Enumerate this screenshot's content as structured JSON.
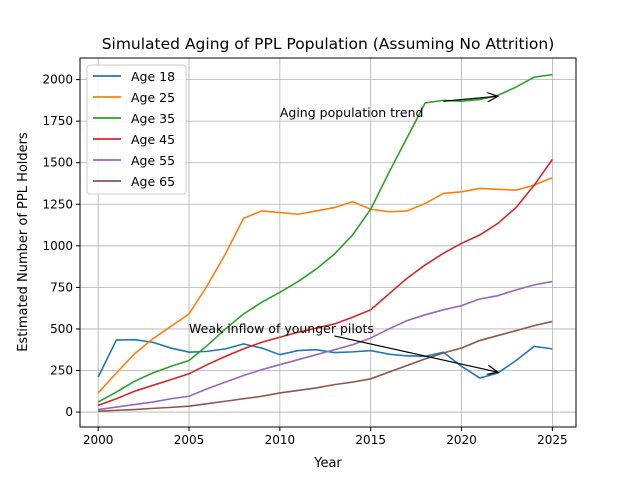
{
  "chart_data": {
    "type": "line",
    "title": "Simulated Aging of PPL Population (Assuming No Attrition)",
    "xlabel": "Year",
    "ylabel": "Estimated Number of PPL Holders",
    "xlim": [
      1999,
      2026.3
    ],
    "ylim": [
      -90,
      2130
    ],
    "xticks": [
      2000,
      2005,
      2010,
      2015,
      2020,
      2025
    ],
    "yticks": [
      0,
      250,
      500,
      750,
      1000,
      1250,
      1500,
      1750,
      2000
    ],
    "grid": true,
    "legend_position": "top-left",
    "x": [
      2000,
      2001,
      2002,
      2003,
      2004,
      2005,
      2006,
      2007,
      2008,
      2009,
      2010,
      2011,
      2012,
      2013,
      2014,
      2015,
      2016,
      2017,
      2018,
      2019,
      2020,
      2021,
      2022,
      2023,
      2024,
      2025
    ],
    "series": [
      {
        "name": "Age 18",
        "color": "#1f77b4",
        "values": [
          210,
          433,
          435,
          420,
          385,
          360,
          365,
          380,
          410,
          385,
          345,
          370,
          375,
          358,
          362,
          370,
          348,
          338,
          335,
          360,
          275,
          205,
          235,
          310,
          395,
          380
        ]
      },
      {
        "name": "Age 25",
        "color": "#ff7f0e",
        "values": [
          115,
          235,
          350,
          440,
          515,
          590,
          760,
          950,
          1165,
          1210,
          1200,
          1190,
          1210,
          1230,
          1265,
          1220,
          1205,
          1210,
          1255,
          1315,
          1325,
          1345,
          1340,
          1335,
          1365,
          1410
        ]
      },
      {
        "name": "Age 35",
        "color": "#2ca02c",
        "values": [
          60,
          120,
          185,
          235,
          275,
          310,
          400,
          500,
          590,
          660,
          720,
          785,
          860,
          950,
          1065,
          1220,
          1440,
          1650,
          1860,
          1875,
          1870,
          1880,
          1905,
          1955,
          2015,
          2030
        ]
      },
      {
        "name": "Age 45",
        "color": "#d62728",
        "values": [
          40,
          80,
          125,
          160,
          195,
          230,
          285,
          335,
          380,
          420,
          450,
          480,
          505,
          530,
          570,
          615,
          710,
          805,
          885,
          955,
          1015,
          1065,
          1135,
          1230,
          1365,
          1520
        ]
      },
      {
        "name": "Age 55",
        "color": "#9467bd",
        "values": [
          15,
          30,
          45,
          60,
          80,
          95,
          140,
          180,
          220,
          255,
          285,
          315,
          345,
          375,
          405,
          445,
          500,
          550,
          585,
          615,
          640,
          680,
          700,
          735,
          765,
          785
        ]
      },
      {
        "name": "Age 65",
        "color": "#8c564b",
        "values": [
          5,
          10,
          15,
          22,
          28,
          35,
          50,
          65,
          80,
          95,
          115,
          130,
          145,
          165,
          180,
          200,
          240,
          280,
          320,
          355,
          385,
          430,
          460,
          490,
          520,
          545
        ]
      }
    ],
    "annotations": [
      {
        "text": "Aging population trend",
        "text_xy": [
          2010,
          1800
        ],
        "arrow_from": [
          2019,
          1870
        ],
        "arrow_to": [
          2022,
          1900
        ]
      },
      {
        "text": "Weak inflow of younger pilots",
        "text_xy": [
          2005,
          500
        ],
        "arrow_from": [
          2013,
          458
        ],
        "arrow_to": [
          2022,
          240
        ]
      }
    ]
  }
}
